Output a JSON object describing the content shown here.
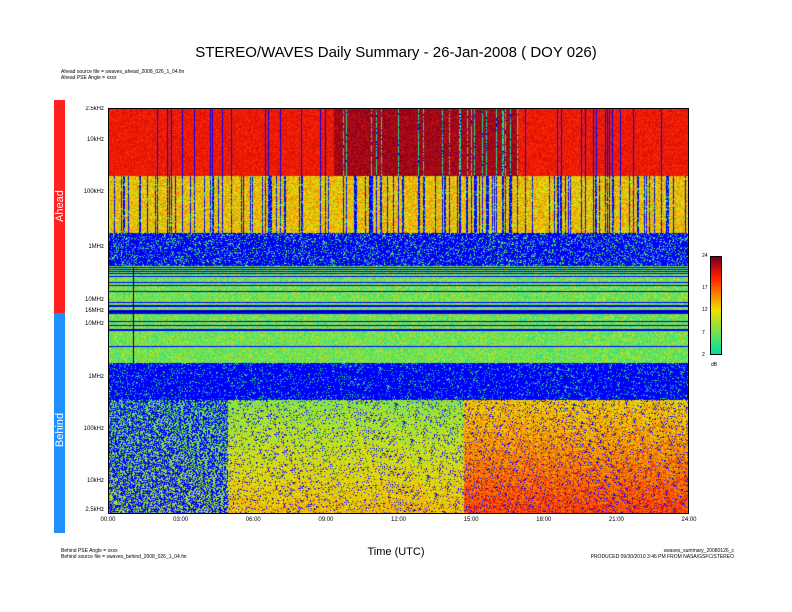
{
  "header": {
    "title": "STEREO/WAVES Daily Summary - 26-Jan-2008 ( DOY 026)",
    "ahead_source": "Ahead source file = swaves_ahead_2008_026_1_04.fin",
    "ahead_pse": "Ahead PSE Angle = xxxx",
    "behind_pse": "Behind PSE Angle = xxxx",
    "behind_source": "Behind source file = swaves_behind_2008_026_1_04.fin",
    "product_file": "swaves_summary_20080126_c",
    "produced": "PRODUCED 09/30/2010 3:46 PM FROM NASA/GSFC/STEREO"
  },
  "bands": {
    "ahead": "Ahead",
    "behind": "Behind"
  },
  "chart_data": {
    "type": "heatmap",
    "title": "STEREO/WAVES Daily Summary - 26-Jan-2008 ( DOY 026)",
    "xlabel": "Time (UTC)",
    "x_ticks": [
      "00:00",
      "03:00",
      "06:00",
      "09:00",
      "12:00",
      "15:00",
      "18:00",
      "21:00",
      "24:00"
    ],
    "xlim": [
      "00:00",
      "24:00"
    ],
    "panels": [
      {
        "name": "Ahead",
        "y_ticks": [
          "2.5kHz",
          "10kHz",
          "100kHz",
          "1MHz",
          "10MHz",
          "16MHz"
        ],
        "y_scale": "log"
      },
      {
        "name": "Behind",
        "y_ticks": [
          "16MHz",
          "10MHz",
          "1MHz",
          "100kHz",
          "10kHz",
          "2.5kHz"
        ],
        "y_scale": "log"
      }
    ],
    "colorbar": {
      "ticks": [
        "24",
        "17",
        "12",
        "7",
        "2"
      ],
      "unit": "dB",
      "range": [
        2,
        24
      ]
    },
    "colors": {
      "background": "#0000ff",
      "low": "#00e0a0",
      "mid": "#f0e000",
      "high": "#ff1a00",
      "max": "#7a0020"
    }
  }
}
